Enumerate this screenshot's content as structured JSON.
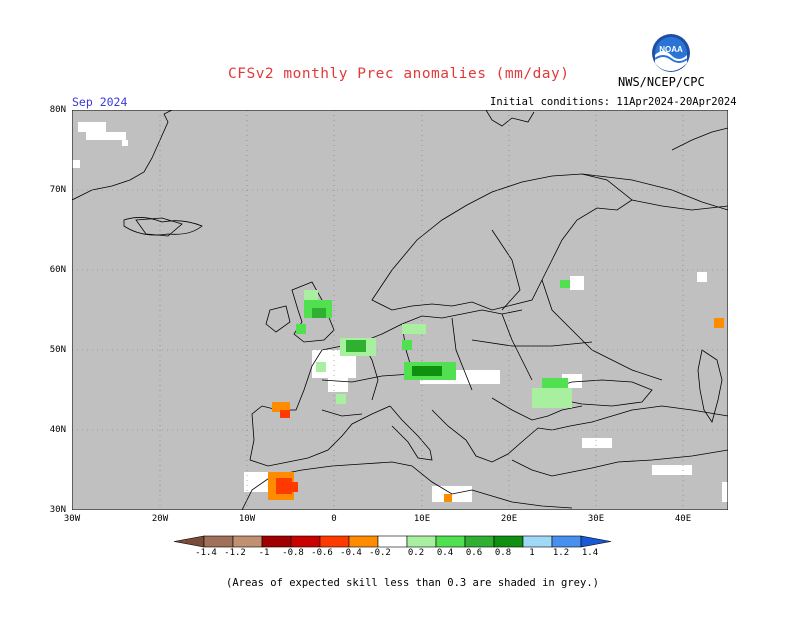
{
  "header": {
    "title": "CFSv2 monthly Prec anomalies (mm/day)",
    "valid_month": "Sep 2024",
    "initial_conditions": "Initial conditions: 11Apr2024-20Apr2024",
    "agency": "NWS/NCEP/CPC",
    "logo_text": "NOAA"
  },
  "map": {
    "lat_labels": [
      "80N",
      "70N",
      "60N",
      "50N",
      "40N",
      "30N"
    ],
    "lon_labels": [
      "30W",
      "20W",
      "10W",
      "0",
      "10E",
      "20E",
      "30E",
      "40E"
    ],
    "no_skill_color": "#c0c0c0",
    "land_outline_color": "#000000"
  },
  "colorbar": {
    "labels": [
      "-1.4",
      "-1.2",
      "-1",
      "-0.8",
      "-0.6",
      "-0.4",
      "-0.2",
      "0.2",
      "0.4",
      "0.6",
      "0.8",
      "1",
      "1.2",
      "1.4"
    ],
    "colors": [
      "#7a4b3a",
      "#a0705a",
      "#c09070",
      "#a00000",
      "#c80000",
      "#ff3a00",
      "#ff8c00",
      "#ffffff",
      "#a8f0a0",
      "#50e050",
      "#30b030",
      "#109010",
      "#a0d8f8",
      "#4890f0",
      "#1858d8"
    ]
  },
  "footer": {
    "note": "(Areas of expected skill less than 0.3 are shaded in grey.)"
  }
}
